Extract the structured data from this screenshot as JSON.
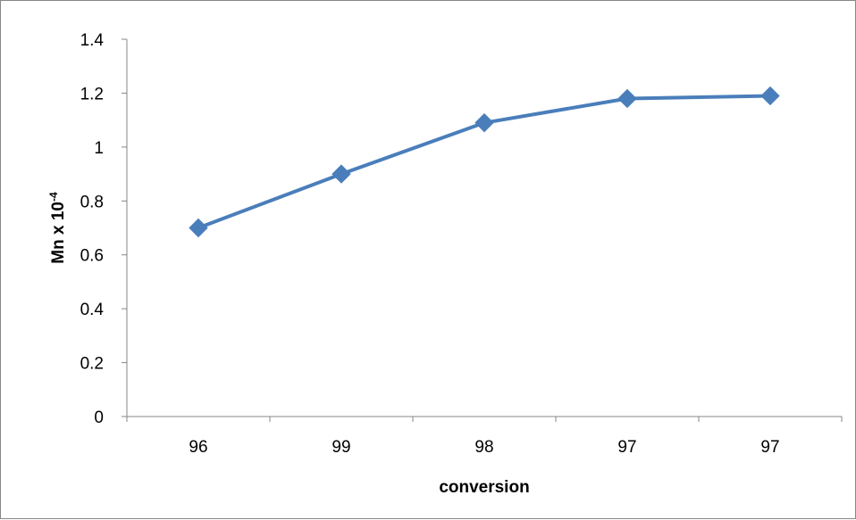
{
  "chart_data": {
    "type": "line",
    "title": "",
    "xlabel": "conversion",
    "ylabel": {
      "base": "Mn x 10",
      "superscript": "-4"
    },
    "categories": [
      "96",
      "99",
      "98",
      "97",
      "97"
    ],
    "series": [
      {
        "values": [
          0.7,
          0.9,
          1.09,
          1.18,
          1.19
        ],
        "color": "#4a7ebb",
        "marker": "diamond"
      }
    ],
    "ylim": [
      0,
      1.4
    ],
    "yticks": [
      "0",
      "0.2",
      "0.4",
      "0.6",
      "0.8",
      "1",
      "1.2",
      "1.4"
    ],
    "grid": false,
    "legend": "none"
  }
}
